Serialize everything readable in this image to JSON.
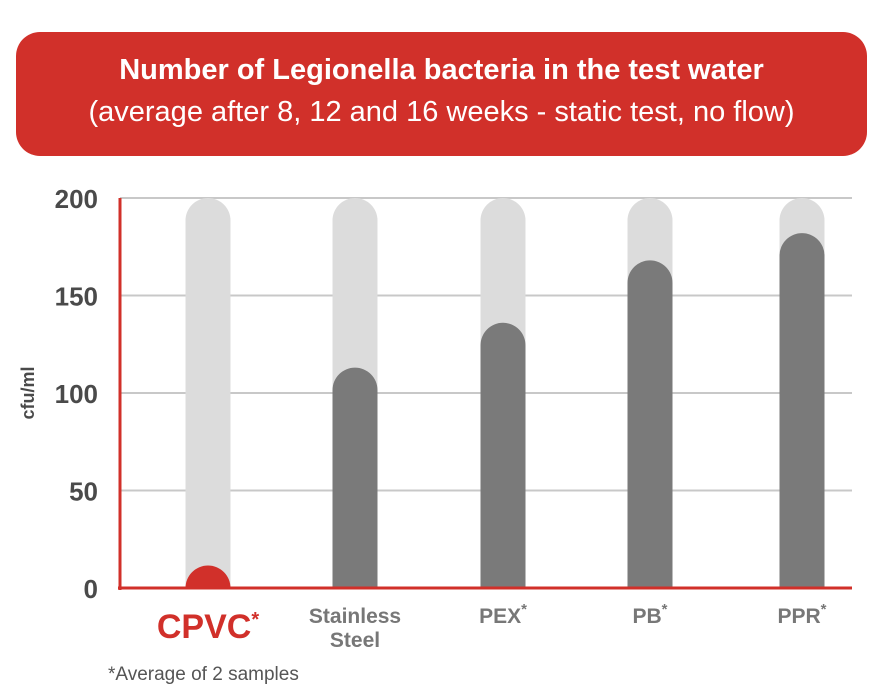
{
  "header": {
    "title": "Number of Legionella bacteria in the test water",
    "subtitle": "(average after 8, 12 and 16 weeks - static test, no flow)"
  },
  "footnote": "*Average of 2 samples",
  "colors": {
    "banner": "#d1302a",
    "accent": "#d1302a",
    "bar_track": "#dcdcdc",
    "bar_fill": "#7a7a7a",
    "grid": "#c8c8c8",
    "tick_text": "#4a4a4a"
  },
  "chart_data": {
    "type": "bar",
    "title": "",
    "xlabel": "",
    "ylabel": "cfu/ml",
    "ylim": [
      0,
      200
    ],
    "yticks": [
      0,
      50,
      100,
      150,
      200
    ],
    "grid": true,
    "categories": [
      {
        "label": "CPVC",
        "asterisk": true,
        "highlight": true
      },
      {
        "label": "Stainless Steel",
        "asterisk": false,
        "highlight": false
      },
      {
        "label": "PEX",
        "asterisk": true,
        "highlight": false
      },
      {
        "label": "PB",
        "asterisk": true,
        "highlight": false
      },
      {
        "label": "PPR",
        "asterisk": true,
        "highlight": false
      }
    ],
    "values": [
      0,
      113,
      136,
      168,
      182
    ]
  }
}
